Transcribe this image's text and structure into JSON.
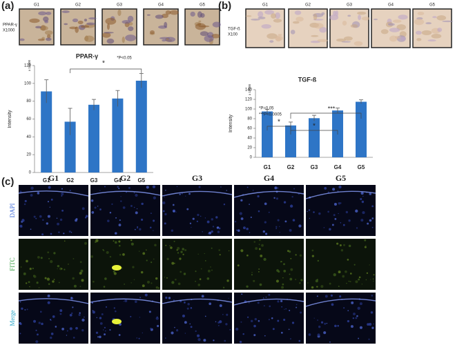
{
  "figure": {
    "panel_a": {
      "label": "(a)",
      "image_labels": [
        "G1",
        "G2",
        "G3",
        "G4",
        "G5"
      ],
      "stain": "PPAR-γ",
      "magnification": "X1000"
    },
    "panel_b": {
      "label": "(b)",
      "image_labels": [
        "G1",
        "G2",
        "G3",
        "G4",
        "G5"
      ],
      "stain": "TGF-ß",
      "magnification": "X100"
    },
    "panel_c": {
      "label": "(c)",
      "columns": [
        "G1",
        "G2",
        "G3",
        "G4",
        "G5"
      ],
      "rows": [
        "DAPI",
        "FITC",
        "Merge"
      ]
    }
  },
  "chart_data": [
    {
      "type": "bar",
      "title": "PPAR-γ",
      "y_label": "Intensity",
      "y_unit": "x 10000",
      "categories": [
        "G1",
        "G2",
        "G3",
        "G4",
        "G5"
      ],
      "values": [
        91,
        57,
        76,
        83,
        103
      ],
      "errors": [
        13,
        15,
        6,
        9,
        8
      ],
      "color": "#2e75c6",
      "ylim": [
        0,
        120
      ],
      "yticks": [
        0,
        20,
        40,
        60,
        80,
        100,
        120
      ],
      "annotations": [
        "*",
        "*P<0.05"
      ]
    },
    {
      "type": "bar",
      "title": "TGF-ß",
      "y_label": "Intensity",
      "y_unit": "x 10000",
      "categories": [
        "G1",
        "G2",
        "G3",
        "G4",
        "G5"
      ],
      "values": [
        95,
        66,
        81,
        97,
        115
      ],
      "errors": [
        4,
        7,
        6,
        5,
        4
      ],
      "color": "#2e75c6",
      "ylim": [
        0,
        140
      ],
      "yticks": [
        0,
        20,
        40,
        60,
        80,
        100,
        120,
        140
      ],
      "annotations": [
        "*P=0.05",
        "***P<0.0005",
        "*",
        "***",
        "*"
      ]
    }
  ]
}
